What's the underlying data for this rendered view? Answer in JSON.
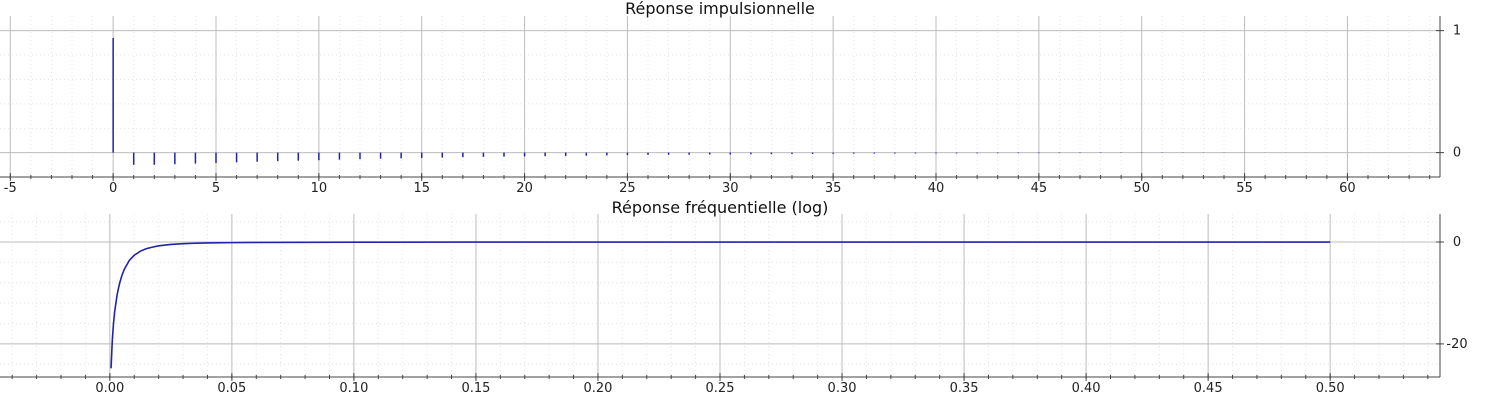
{
  "chart_data": [
    {
      "type": "stem",
      "title": "Réponse impulsionnelle",
      "xlim": [
        -5.5,
        64.5
      ],
      "ylim": [
        -0.2,
        1.12
      ],
      "x_ticks": [
        -5,
        0,
        5,
        10,
        15,
        20,
        25,
        30,
        35,
        40,
        45,
        50,
        55,
        60
      ],
      "y_ticks": [
        0,
        1
      ],
      "grid": true,
      "series": [
        {
          "color": "#2222aa",
          "x": [
            0,
            1,
            2,
            3,
            4,
            5,
            6,
            7,
            8,
            9,
            10,
            11,
            12,
            13,
            14,
            15,
            16,
            17,
            18,
            19,
            20,
            21,
            22,
            23,
            24,
            25,
            26,
            27,
            28,
            29,
            30,
            31,
            32,
            33,
            34,
            35,
            36,
            37,
            38,
            39,
            40,
            41,
            42,
            43,
            44,
            45,
            46,
            47,
            48,
            49,
            50,
            51,
            52,
            53,
            54,
            55,
            56,
            57,
            58,
            59
          ],
          "values": [
            0.94,
            -0.1,
            -0.1,
            -0.095,
            -0.09,
            -0.085,
            -0.08,
            -0.075,
            -0.07,
            -0.066,
            -0.062,
            -0.058,
            -0.054,
            -0.05,
            -0.047,
            -0.044,
            -0.041,
            -0.038,
            -0.035,
            -0.033,
            -0.031,
            -0.029,
            -0.027,
            -0.025,
            -0.023,
            -0.021,
            -0.019,
            -0.018,
            -0.017,
            -0.016,
            -0.015,
            -0.014,
            -0.013,
            -0.012,
            -0.011,
            -0.01,
            -0.009,
            -0.0085,
            -0.008,
            -0.0075,
            -0.007,
            -0.0065,
            -0.006,
            -0.0055,
            -0.005,
            -0.0046,
            -0.0042,
            -0.0038,
            -0.0034,
            -0.003,
            -0.0027,
            -0.0024,
            -0.0021,
            -0.0018,
            -0.0015,
            -0.0013,
            -0.0011,
            -0.0009,
            -0.0007,
            -0.0005
          ]
        }
      ]
    },
    {
      "type": "line",
      "title": "Réponse fréquentielle (log)",
      "xlim": [
        -0.045,
        0.545
      ],
      "ylim": [
        -26.5,
        5.5
      ],
      "x_ticks": [
        "0.00",
        "0.05",
        "0.10",
        "0.15",
        "0.20",
        "0.25",
        "0.30",
        "0.35",
        "0.40",
        "0.45",
        "0.50"
      ],
      "y_ticks": [
        0,
        -20
      ],
      "grid": true,
      "series": [
        {
          "color": "#2222aa",
          "x": [
            0.0005,
            0.001,
            0.0015,
            0.002,
            0.003,
            0.004,
            0.005,
            0.006,
            0.008,
            0.01,
            0.0125,
            0.015,
            0.0175,
            0.02,
            0.025,
            0.03,
            0.035,
            0.04,
            0.05,
            0.06,
            0.08,
            0.1,
            0.15,
            0.2,
            0.25,
            0.3,
            0.35,
            0.4,
            0.45,
            0.5
          ],
          "values": [
            -24.8,
            -19.4,
            -16.0,
            -13.6,
            -10.3,
            -8.1,
            -6.5,
            -5.3,
            -3.6,
            -2.6,
            -1.8,
            -1.3,
            -1.0,
            -0.75,
            -0.48,
            -0.33,
            -0.24,
            -0.19,
            -0.12,
            -0.08,
            -0.05,
            -0.03,
            -0.015,
            -0.01,
            -0.007,
            -0.005,
            -0.004,
            -0.003,
            -0.002,
            -0.002
          ]
        }
      ]
    }
  ]
}
